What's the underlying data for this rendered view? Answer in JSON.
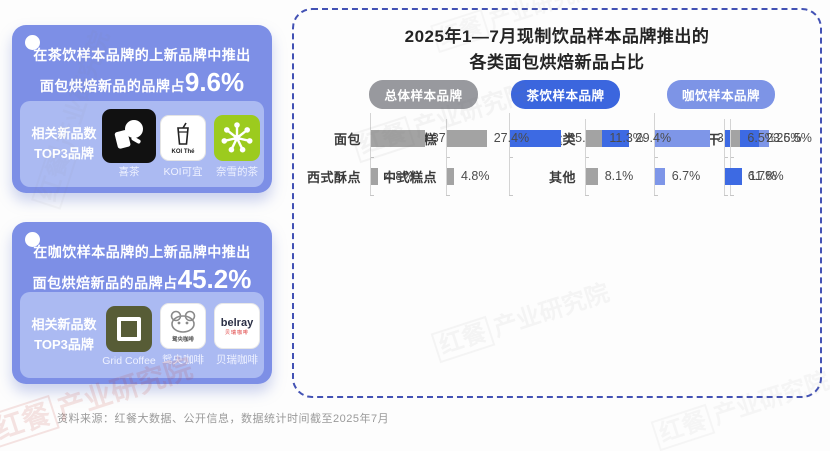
{
  "cards": [
    {
      "line1": "在茶饮样本品牌的上新品牌中推出",
      "line2": "面包烘焙新品的品牌占",
      "highlight_value": "9.6%",
      "panel_title_line1": "相关新品数",
      "panel_title_line2": "TOP3品牌",
      "brands": [
        {
          "label": "喜茶"
        },
        {
          "label": "KOI可宜",
          "icon_text": "KOI Thé"
        },
        {
          "label": "奈雪的茶"
        }
      ]
    },
    {
      "line1": "在咖饮样本品牌的上新品牌中推出",
      "line2": "面包烘焙新品的品牌占",
      "highlight_value": "45.2%",
      "panel_title_line1": "相关新品数",
      "panel_title_line2": "TOP3品牌",
      "brands": [
        {
          "label": "Grid Coffee"
        },
        {
          "label": "鸳央咖啡",
          "icon_text": "鸳央咖啡"
        },
        {
          "label": "贝瑞咖啡",
          "icon_text": "belray",
          "icon_subtext": "贝瑞咖啡"
        }
      ]
    }
  ],
  "chart_data": {
    "type": "bar",
    "orientation": "horizontal",
    "title_line1": "2025年1—7月现制饮品样本品牌推出的",
    "title_line2": "各类面包烘焙新品占比",
    "categories": [
      "面包",
      "蛋糕",
      "挞类",
      "饼干",
      "西式酥点",
      "中式糕点",
      "其他"
    ],
    "series": [
      {
        "name": "总体样本品牌",
        "color": "#a3a3a3",
        "values": [
          37.1,
          27.4,
          11.3,
          6.5,
          4.8,
          4.8,
          8.1
        ]
      },
      {
        "name": "茶饮样本品牌",
        "color": "#3d6ae3",
        "values": [
          35.3,
          29.4,
          23.5,
          null,
          null,
          null,
          11.8
        ]
      },
      {
        "name": "咖饮样本品牌",
        "color": "#7e96e8",
        "values": [
          37.8,
          26.5,
          6.7,
          8.9,
          6.7,
          6.7,
          6.7
        ]
      }
    ],
    "value_suffix": "%",
    "xlim": [
      0,
      40
    ],
    "legend_position": "top",
    "grid": false
  },
  "legend": [
    {
      "label": "总体样本品牌",
      "color": "#98999e"
    },
    {
      "label": "茶饮样本品牌",
      "color": "#3b66de"
    },
    {
      "label": "咖饮样本品牌",
      "color": "#7d94e6"
    }
  ],
  "footer": {
    "source": "资料来源：红餐大数据、公开信息，数据统计时间截至2025年7月"
  },
  "watermark": {
    "brand": "红餐",
    "org": "产业研究院"
  },
  "colors": {
    "card_bg": "#7d8fe6",
    "card_panel_bg": "#abbaf2",
    "chart_border": "#4352b4",
    "bar_gray": "#a3a3a3",
    "bar_blue": "#3d6ae3",
    "bar_periwinkle": "#7e96e8",
    "naixue_green": "#9ccb1e",
    "grid_coffee_olive": "#575c36",
    "heytea_black": "#111111"
  }
}
